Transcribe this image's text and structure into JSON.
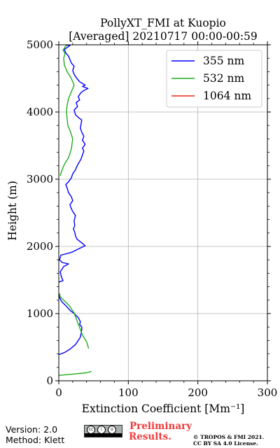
{
  "chart_data": {
    "type": "line",
    "title_line1": "PollyXT_FMI at Kuopio",
    "title_line2": "[Averaged] 20210717 00:00-00:59",
    "xlabel": "Extinction Coefficient [Mm⁻¹]",
    "ylabel": "Height (m)",
    "xlim": [
      0,
      300
    ],
    "ylim": [
      0,
      5000
    ],
    "xticks": [
      "0",
      "100",
      "200",
      "300"
    ],
    "yticks": [
      "0",
      "1000",
      "2000",
      "3000",
      "4000",
      "5000"
    ],
    "grid": true,
    "legend_position": "top-right",
    "series": [
      {
        "name": "355 nm",
        "color": "#0000ff",
        "points": [
          [
            0,
            390
          ],
          [
            8,
            420
          ],
          [
            16,
            470
          ],
          [
            24,
            540
          ],
          [
            28,
            600
          ],
          [
            31,
            650
          ],
          [
            32,
            700
          ],
          [
            33,
            760
          ],
          [
            33,
            800
          ],
          [
            30,
            840
          ],
          [
            31,
            880
          ],
          [
            28,
            940
          ],
          [
            22,
            1000
          ],
          [
            16,
            1050
          ],
          [
            10,
            1120
          ],
          [
            4,
            1180
          ],
          [
            1,
            1240
          ],
          [
            0,
            1290
          ],
          [
            0,
            1470
          ],
          [
            6,
            1490
          ],
          [
            4,
            1540
          ],
          [
            2,
            1620
          ],
          [
            7,
            1700
          ],
          [
            14,
            1740
          ],
          [
            5,
            1760
          ],
          [
            1,
            1800
          ],
          [
            3,
            1870
          ],
          [
            18,
            1910
          ],
          [
            28,
            1960
          ],
          [
            38,
            2010
          ],
          [
            32,
            2060
          ],
          [
            26,
            2110
          ],
          [
            24,
            2160
          ],
          [
            23,
            2210
          ],
          [
            21,
            2260
          ],
          [
            23,
            2310
          ],
          [
            22,
            2380
          ],
          [
            24,
            2460
          ],
          [
            20,
            2520
          ],
          [
            18,
            2560
          ],
          [
            16,
            2620
          ],
          [
            20,
            2680
          ],
          [
            18,
            2740
          ],
          [
            14,
            2800
          ],
          [
            12,
            2870
          ],
          [
            10,
            2920
          ],
          [
            14,
            2960
          ],
          [
            18,
            3020
          ],
          [
            20,
            3080
          ],
          [
            24,
            3140
          ],
          [
            26,
            3190
          ],
          [
            28,
            3230
          ],
          [
            32,
            3300
          ],
          [
            34,
            3360
          ],
          [
            36,
            3420
          ],
          [
            34,
            3460
          ],
          [
            38,
            3520
          ],
          [
            34,
            3580
          ],
          [
            36,
            3640
          ],
          [
            33,
            3700
          ],
          [
            31,
            3760
          ],
          [
            32,
            3820
          ],
          [
            33,
            3880
          ],
          [
            28,
            3920
          ],
          [
            24,
            3960
          ],
          [
            22,
            4030
          ],
          [
            27,
            4080
          ],
          [
            25,
            4140
          ],
          [
            30,
            4180
          ],
          [
            28,
            4230
          ],
          [
            32,
            4290
          ],
          [
            36,
            4320
          ],
          [
            42,
            4350
          ],
          [
            34,
            4380
          ],
          [
            38,
            4400
          ],
          [
            30,
            4450
          ],
          [
            26,
            4500
          ],
          [
            22,
            4560
          ],
          [
            20,
            4620
          ],
          [
            22,
            4680
          ],
          [
            18,
            4730
          ],
          [
            16,
            4780
          ],
          [
            14,
            4830
          ],
          [
            10,
            4880
          ],
          [
            8,
            4930
          ],
          [
            12,
            4960
          ],
          [
            16,
            4990
          ],
          [
            10,
            5000
          ]
        ]
      },
      {
        "name": "532 nm",
        "color": "#1fae1f",
        "points": [
          [
            0,
            80
          ],
          [
            20,
            100
          ],
          [
            40,
            120
          ],
          [
            47,
            140
          ],
          [
            44,
            300
          ],
          [
            43,
            480
          ],
          [
            40,
            580
          ],
          [
            34,
            680
          ],
          [
            30,
            790
          ],
          [
            26,
            900
          ],
          [
            22,
            1010
          ],
          [
            15,
            1120
          ],
          [
            8,
            1190
          ],
          [
            2,
            1250
          ],
          [
            1,
            1300
          ],
          [
            1,
            1500
          ],
          [
            2,
            1900
          ],
          [
            2,
            2200
          ],
          [
            2,
            2500
          ],
          [
            2,
            2800
          ],
          [
            2,
            3050
          ],
          [
            4,
            3120
          ],
          [
            8,
            3220
          ],
          [
            14,
            3320
          ],
          [
            18,
            3450
          ],
          [
            20,
            3600
          ],
          [
            17,
            3700
          ],
          [
            13,
            3800
          ],
          [
            12,
            3900
          ],
          [
            11,
            4000
          ],
          [
            12,
            4100
          ],
          [
            14,
            4200
          ],
          [
            18,
            4300
          ],
          [
            22,
            4400
          ],
          [
            18,
            4500
          ],
          [
            12,
            4600
          ],
          [
            8,
            4700
          ],
          [
            7,
            4800
          ],
          [
            9,
            4870
          ],
          [
            6,
            4920
          ],
          [
            10,
            4980
          ],
          [
            12,
            5000
          ]
        ]
      },
      {
        "name": "1064 nm",
        "color": "#e8271c",
        "points": []
      }
    ]
  },
  "footer": {
    "version": "Version: 2.0",
    "method": "Method: Klett",
    "license_badge": "cc by sa",
    "preliminary_line1": "Preliminary",
    "preliminary_line2": "Results.",
    "copyright_line1": "© TROPOS & FMI 2021.",
    "copyright_line2": "CC BY SA 4.0 License."
  }
}
